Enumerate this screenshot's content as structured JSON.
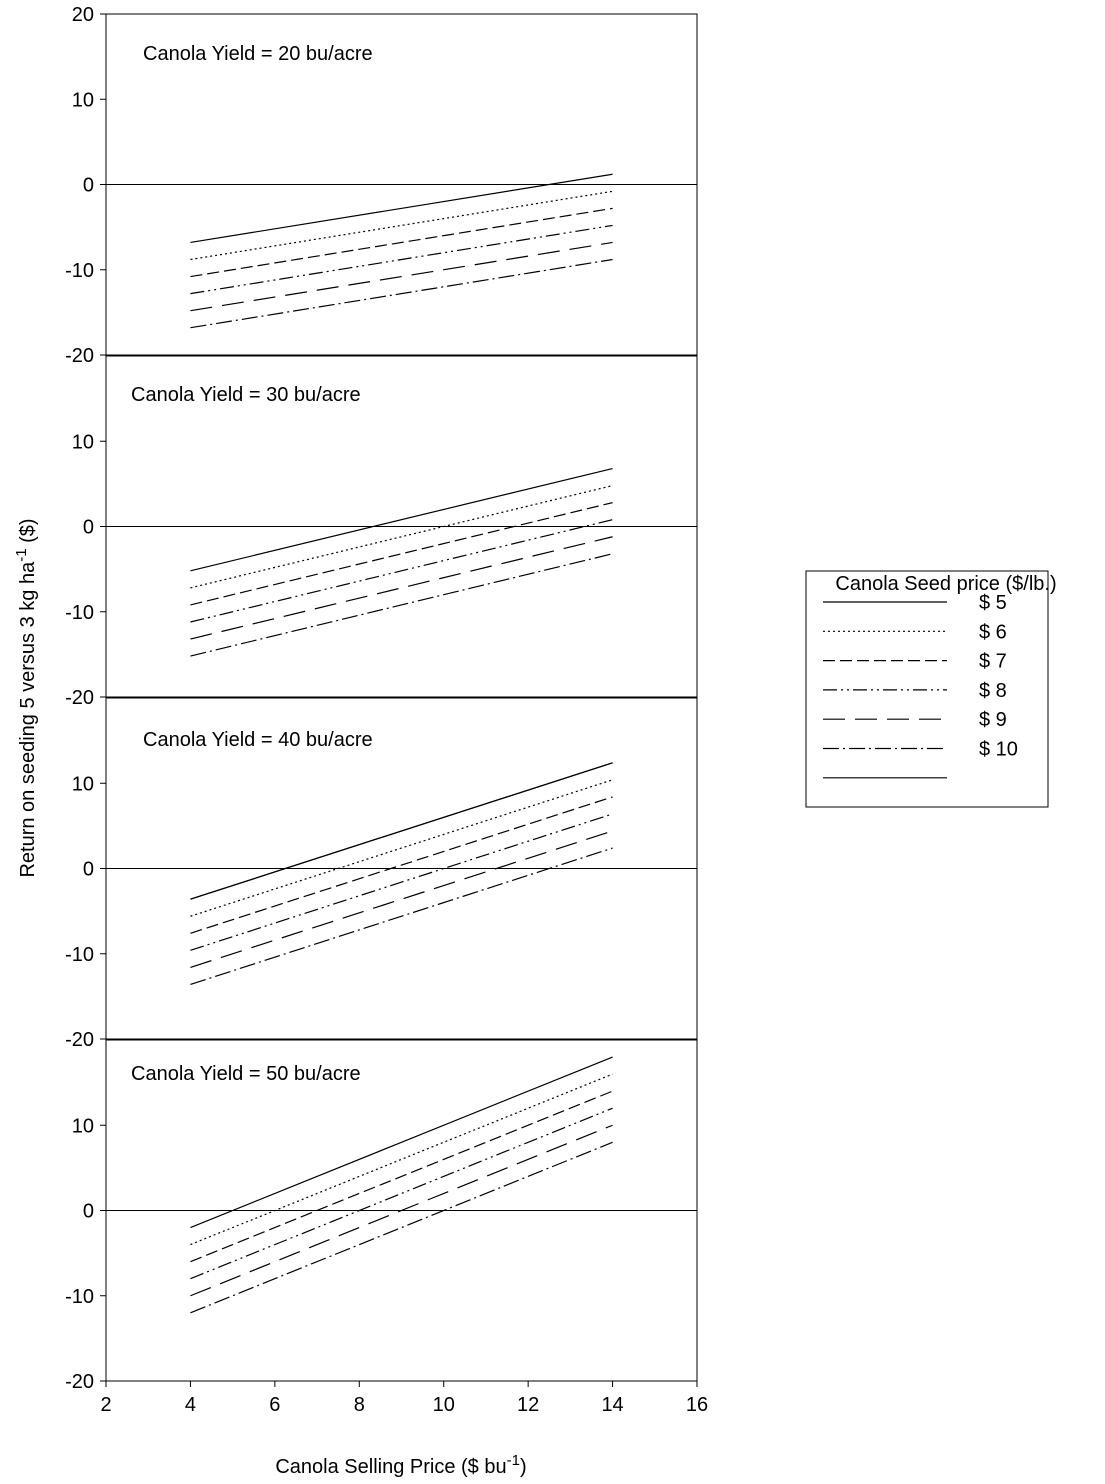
{
  "chart_data": [
    {
      "type": "line",
      "annotation": "Canola Yield = 20 bu/acre",
      "x": [
        4,
        14
      ],
      "xlim": [
        2,
        16
      ],
      "ylim": [
        -20,
        20
      ],
      "yticks": [
        -20,
        -10,
        0,
        10,
        20
      ],
      "zero_line": true,
      "series": [
        {
          "name": "$ 5",
          "dash": "solid",
          "values": [
            -6.8,
            1.2
          ]
        },
        {
          "name": "$ 6",
          "dash": "dotted",
          "values": [
            -8.8,
            -0.8
          ]
        },
        {
          "name": "$ 7",
          "dash": "short-dash",
          "values": [
            -10.8,
            -2.8
          ]
        },
        {
          "name": "$ 8",
          "dash": "dash-dot-dot",
          "values": [
            -12.8,
            -4.8
          ]
        },
        {
          "name": "$ 9",
          "dash": "long-dash",
          "values": [
            -14.8,
            -6.8
          ]
        },
        {
          "name": "$ 10",
          "dash": "dash-dot",
          "values": [
            -16.8,
            -8.8
          ]
        }
      ]
    },
    {
      "type": "line",
      "annotation": "Canola Yield = 30 bu/acre",
      "x": [
        4,
        14
      ],
      "xlim": [
        2,
        16
      ],
      "ylim": [
        -20,
        20
      ],
      "yticks": [
        -20,
        -10,
        0,
        10
      ],
      "zero_line": true,
      "series": [
        {
          "name": "$ 5",
          "dash": "solid",
          "values": [
            -5.2,
            6.8
          ]
        },
        {
          "name": "$ 6",
          "dash": "dotted",
          "values": [
            -7.2,
            4.8
          ]
        },
        {
          "name": "$ 7",
          "dash": "short-dash",
          "values": [
            -9.2,
            2.8
          ]
        },
        {
          "name": "$ 8",
          "dash": "dash-dot-dot",
          "values": [
            -11.2,
            0.8
          ]
        },
        {
          "name": "$ 9",
          "dash": "long-dash",
          "values": [
            -13.2,
            -1.2
          ]
        },
        {
          "name": "$ 10",
          "dash": "dash-dot",
          "values": [
            -15.2,
            -3.2
          ]
        }
      ]
    },
    {
      "type": "line",
      "annotation": "Canola Yield = 40 bu/acre",
      "x": [
        4,
        14
      ],
      "xlim": [
        2,
        16
      ],
      "ylim": [
        -20,
        20
      ],
      "yticks": [
        -20,
        -10,
        0,
        10
      ],
      "zero_line": true,
      "series": [
        {
          "name": "$ 5",
          "dash": "solid",
          "values": [
            -3.6,
            12.4
          ]
        },
        {
          "name": "$ 6",
          "dash": "dotted",
          "values": [
            -5.6,
            10.4
          ]
        },
        {
          "name": "$ 7",
          "dash": "short-dash",
          "values": [
            -7.6,
            8.4
          ]
        },
        {
          "name": "$ 8",
          "dash": "dash-dot-dot",
          "values": [
            -9.6,
            6.4
          ]
        },
        {
          "name": "$ 9",
          "dash": "long-dash",
          "values": [
            -11.6,
            4.4
          ]
        },
        {
          "name": "$ 10",
          "dash": "dash-dot",
          "values": [
            -13.6,
            2.4
          ]
        },
        {
          "name": null,
          "dash": "solid",
          "values": [
            -3.6,
            12.4
          ]
        }
      ]
    },
    {
      "type": "line",
      "annotation": "Canola Yield = 50 bu/acre",
      "x": [
        4,
        14
      ],
      "xlim": [
        2,
        16
      ],
      "ylim": [
        -20,
        20
      ],
      "yticks": [
        -20,
        -10,
        0,
        10
      ],
      "xticks": [
        2,
        4,
        6,
        8,
        10,
        12,
        14,
        16
      ],
      "zero_line": true,
      "series": [
        {
          "name": "$ 5",
          "dash": "solid",
          "values": [
            -2,
            18
          ]
        },
        {
          "name": "$ 6",
          "dash": "dotted",
          "values": [
            -4,
            16
          ]
        },
        {
          "name": "$ 7",
          "dash": "short-dash",
          "values": [
            -6,
            14
          ]
        },
        {
          "name": "$ 8",
          "dash": "dash-dot-dot",
          "values": [
            -8,
            12
          ]
        },
        {
          "name": "$ 9",
          "dash": "long-dash",
          "values": [
            -10,
            10
          ]
        },
        {
          "name": "$ 10",
          "dash": "dash-dot",
          "values": [
            -12,
            8
          ]
        }
      ]
    }
  ],
  "x_label": [
    "Canola Selling Price ($ bu",
    "-1",
    ")"
  ],
  "y_label": [
    "Return on seeding 5 versus 3 kg ha",
    "-1",
    " ($)"
  ],
  "legend_title": "Canola Seed price ($/lb.)"
}
